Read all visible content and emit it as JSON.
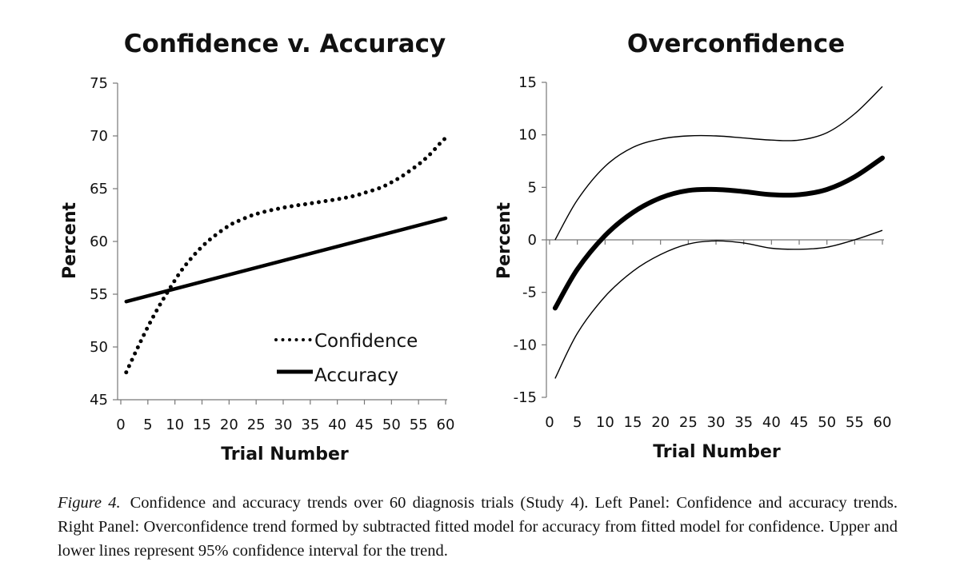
{
  "chart_data": [
    {
      "type": "line",
      "title": "Confidence v. Accuracy",
      "xlabel": "Trial Number",
      "ylabel": "Percent",
      "xlim": [
        0,
        60
      ],
      "ylim": [
        45,
        75
      ],
      "x_ticks": [
        "0",
        "5",
        "10",
        "15",
        "20",
        "25",
        "30",
        "35",
        "40",
        "45",
        "50",
        "55",
        "60"
      ],
      "y_ticks": [
        "45",
        "50",
        "55",
        "60",
        "65",
        "70",
        "75"
      ],
      "legend_position": "bottom-right",
      "series": [
        {
          "name": "Confidence",
          "style": "dotted",
          "x": [
            1,
            3,
            5,
            7,
            9,
            11,
            13,
            15,
            17,
            20,
            22,
            25,
            30,
            35,
            40,
            43,
            45,
            48,
            50,
            52,
            55,
            57,
            59,
            60
          ],
          "y": [
            47.6,
            49.8,
            51.9,
            53.8,
            55.5,
            57.1,
            58.4,
            59.5,
            60.4,
            61.5,
            62.0,
            62.6,
            63.2,
            63.6,
            64.0,
            64.3,
            64.6,
            65.1,
            65.6,
            66.2,
            67.3,
            68.2,
            69.3,
            69.8
          ]
        },
        {
          "name": "Accuracy",
          "style": "solid",
          "x": [
            1,
            60
          ],
          "y": [
            54.3,
            62.2
          ]
        }
      ]
    },
    {
      "type": "line",
      "title": "Overconfidence",
      "xlabel": "Trial Number",
      "ylabel": "Percent",
      "xlim": [
        0,
        60
      ],
      "ylim": [
        -15,
        15
      ],
      "x_ticks": [
        "0",
        "5",
        "10",
        "15",
        "20",
        "25",
        "30",
        "35",
        "40",
        "45",
        "50",
        "55",
        "60"
      ],
      "y_ticks": [
        "-15",
        "-10",
        "-5",
        "0",
        "5",
        "10",
        "15"
      ],
      "series": [
        {
          "style": "thick",
          "x": [
            1,
            5,
            10,
            15,
            20,
            25,
            30,
            35,
            40,
            45,
            50,
            55,
            60
          ],
          "y": [
            -6.5,
            -2.8,
            0.4,
            2.6,
            4.0,
            4.7,
            4.8,
            4.6,
            4.3,
            4.3,
            4.8,
            6.0,
            7.8
          ]
        },
        {
          "style": "thin",
          "x": [
            1,
            5,
            10,
            15,
            20,
            25,
            30,
            35,
            40,
            45,
            50,
            55,
            60
          ],
          "y": [
            0.0,
            3.8,
            7.0,
            8.8,
            9.6,
            9.9,
            9.9,
            9.7,
            9.5,
            9.5,
            10.2,
            12.0,
            14.6
          ]
        },
        {
          "style": "thin",
          "x": [
            1,
            5,
            10,
            15,
            20,
            25,
            30,
            35,
            40,
            45,
            50,
            55,
            60
          ],
          "y": [
            -13.2,
            -8.9,
            -5.4,
            -3.0,
            -1.4,
            -0.4,
            -0.1,
            -0.3,
            -0.8,
            -0.9,
            -0.7,
            0.0,
            0.9
          ]
        }
      ]
    }
  ],
  "caption": {
    "label": "Figure 4.",
    "text": "Confidence and accuracy trends over 60 diagnosis trials (Study 4). Left Panel: Confidence and accuracy trends. Right Panel: Overconfidence trend formed by subtracted fitted model for accuracy from fitted model for confidence. Upper and lower lines represent 95% confidence interval for the trend."
  }
}
